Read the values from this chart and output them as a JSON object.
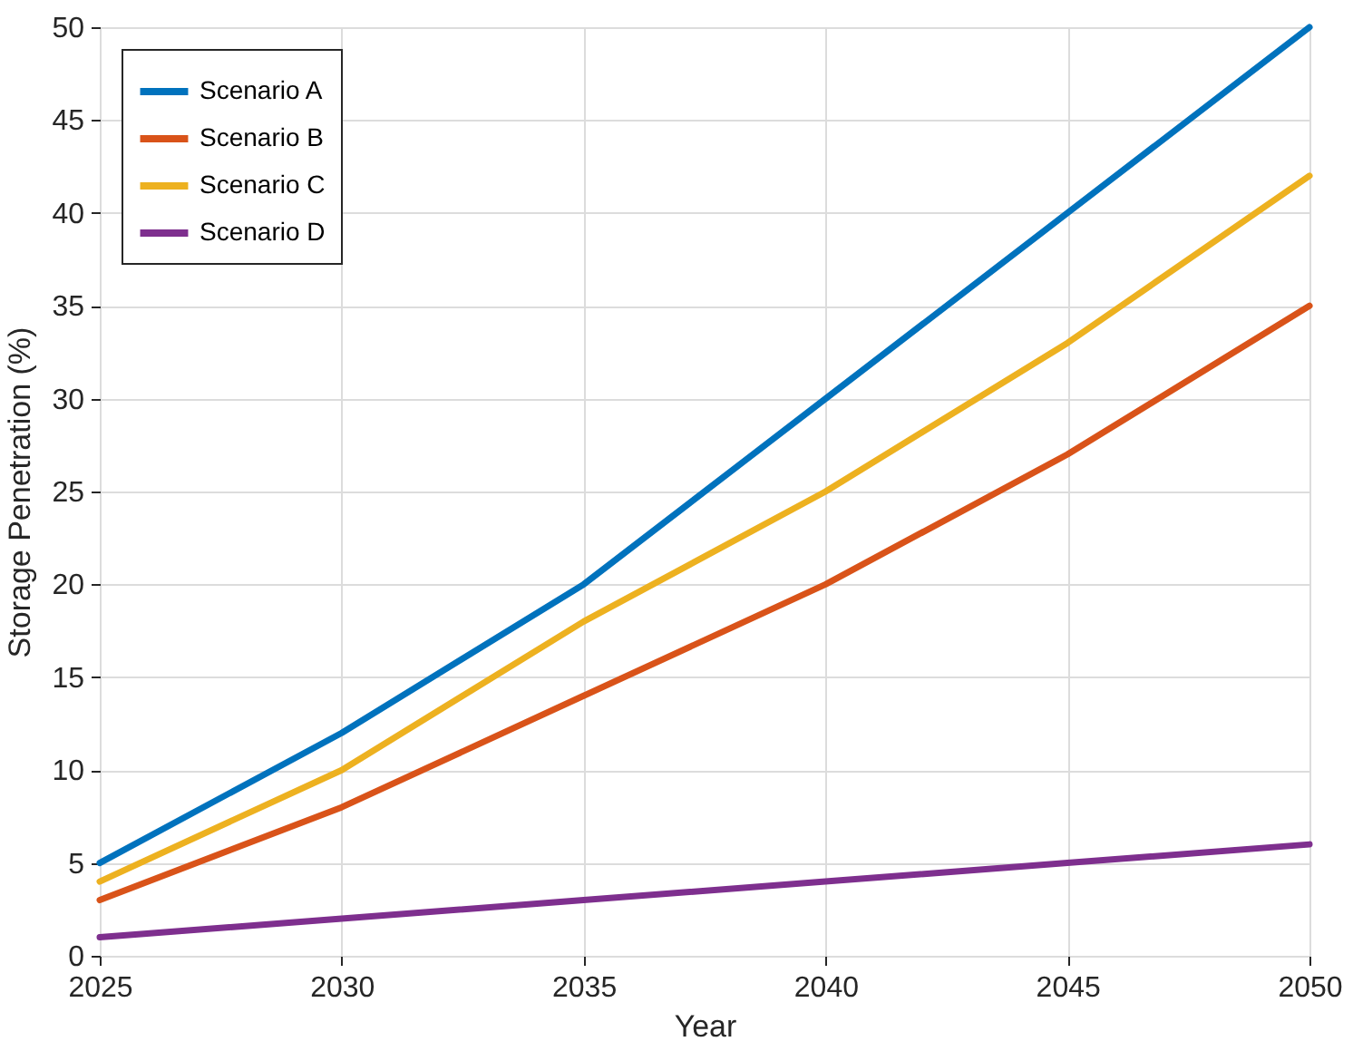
{
  "chart_data": {
    "type": "line",
    "xlabel": "Year",
    "ylabel": "Storage Penetration (%)",
    "x": [
      2025,
      2030,
      2035,
      2040,
      2045,
      2050
    ],
    "series": [
      {
        "name": "Scenario A",
        "color": "#0072bd",
        "values": [
          5,
          12,
          20,
          30,
          40,
          50
        ]
      },
      {
        "name": "Scenario B",
        "color": "#d95319",
        "values": [
          3,
          8,
          14,
          20,
          27,
          35
        ]
      },
      {
        "name": "Scenario C",
        "color": "#edb120",
        "values": [
          4,
          10,
          18,
          25,
          33,
          42
        ]
      },
      {
        "name": "Scenario D",
        "color": "#7e2f8e",
        "values": [
          1,
          2,
          3,
          4,
          5,
          6
        ]
      }
    ],
    "xlim": [
      2025,
      2050
    ],
    "xticks": [
      2025,
      2030,
      2035,
      2040,
      2045,
      2050
    ],
    "ylim": [
      0,
      50
    ],
    "yticks": [
      0,
      5,
      10,
      15,
      20,
      25,
      30,
      35,
      40,
      45,
      50
    ],
    "grid": true,
    "legend": "top left",
    "line_style": "solid"
  }
}
